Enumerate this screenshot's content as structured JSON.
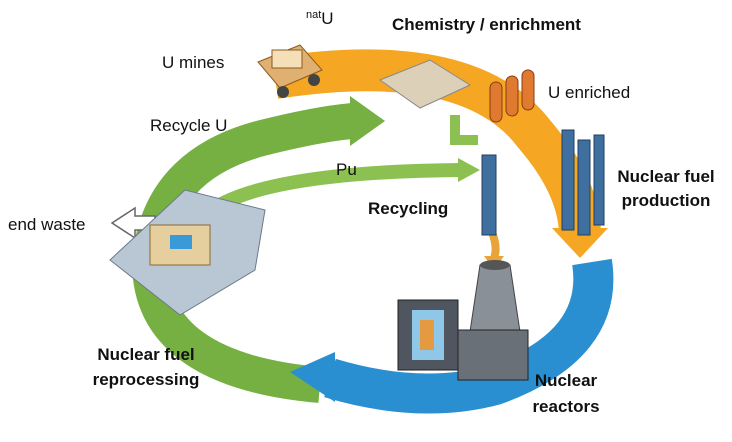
{
  "labels": {
    "u_mines": "U mines",
    "nat_u": {
      "sup": "nat",
      "text": "U"
    },
    "chemistry": "Chemistry / enrichment",
    "u_enriched": "U enriched",
    "recycle_u": "Recycle U",
    "pu": "Pu",
    "recycling": "Recycling",
    "fuel_production": [
      "Nuclear fuel",
      "production"
    ],
    "end_waste": "end waste",
    "reprocessing": [
      "Nuclear fuel",
      "reprocessing"
    ],
    "reactors": [
      "Nuclear",
      "reactors"
    ]
  }
}
